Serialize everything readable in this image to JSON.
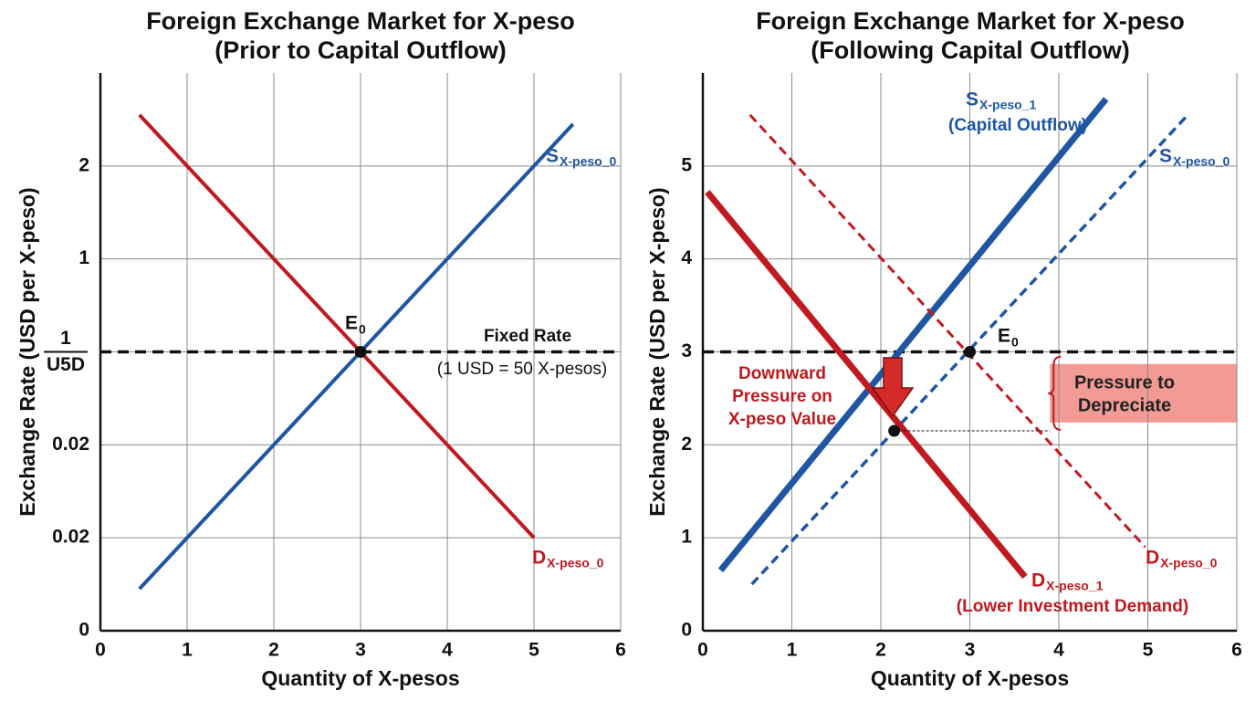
{
  "chart_data": [
    {
      "type": "line",
      "title": [
        "Foreign Exchange Market for X-peso",
        "(Prior to Capital Outflow)"
      ],
      "xlabel": "Quantity of X-pesos",
      "ylabel": "Exchange Rate (USD per X-peso)",
      "xlim": [
        0,
        6
      ],
      "xticks": [
        0,
        1,
        2,
        3,
        4,
        5,
        6
      ],
      "ylim": [
        0,
        6
      ],
      "yticks": [
        0,
        {
          "value": 1,
          "label": "0.02"
        },
        {
          "value": 2,
          "label": "0.02"
        },
        {
          "value": 3,
          "label": "1",
          "label_denominator": "U5D"
        },
        {
          "value": 4,
          "label": "1"
        },
        {
          "value": 5,
          "label": "2"
        }
      ],
      "grid": true,
      "series": [
        {
          "name": "D",
          "name_subscript": "X-peso_0",
          "color": "#c0191f",
          "style": "solid",
          "width": 4,
          "x": [
            0.45,
            5
          ],
          "values": [
            5.55,
            1
          ]
        },
        {
          "name": "S",
          "name_subscript": "X-peso_0",
          "color": "#1f56a3",
          "style": "solid",
          "width": 4,
          "x": [
            0.45,
            5.45
          ],
          "values": [
            0.45,
            5.45
          ]
        }
      ],
      "reference_line": {
        "value": 3,
        "label": "Fixed Rate",
        "sublabel": "(1 USD = 50 X-pesos)"
      },
      "points": [
        {
          "label": "E",
          "label_subscript": "0",
          "x": 3,
          "y": 3
        }
      ]
    },
    {
      "type": "line",
      "title": [
        "Foreign Exchange Market for X-peso",
        "(Following Capital Outflow)"
      ],
      "xlabel": "Quantity of X-pesos",
      "ylabel": "Exchange Rate (USD per X-peso)",
      "xlim": [
        0,
        6
      ],
      "xticks": [
        0,
        1,
        2,
        3,
        4,
        5,
        6
      ],
      "ylim": [
        0,
        6
      ],
      "yticks": [
        0,
        1,
        2,
        3,
        4,
        5
      ],
      "grid": true,
      "series": [
        {
          "name": "S",
          "name_subscript": "X-peso_1",
          "note": "(Capital Outflow)",
          "color": "#1f56a3",
          "style": "solid",
          "width": 7,
          "x": [
            0.2,
            4.53
          ],
          "values": [
            0.65,
            5.72
          ]
        },
        {
          "name": "S",
          "name_subscript": "X-peso_0",
          "color": "#1f56a3",
          "style": "dashed",
          "width": 3.5,
          "x": [
            0.55,
            5.45
          ],
          "values": [
            0.5,
            5.55
          ]
        },
        {
          "name": "D",
          "name_subscript": "X-peso_1",
          "note": "(Lower Investment Demand)",
          "color": "#c0191f",
          "style": "solid",
          "width": 7,
          "x": [
            0.05,
            3.62
          ],
          "values": [
            4.72,
            0.58
          ]
        },
        {
          "name": "D",
          "name_subscript": "X-peso_0",
          "color": "#c0191f",
          "style": "dashed",
          "width": 3,
          "x": [
            0.53,
            4.97
          ],
          "values": [
            5.55,
            0.9
          ]
        }
      ],
      "reference_line": {
        "value": 3
      },
      "points": [
        {
          "label": "E",
          "label_subscript": "0",
          "x": 3,
          "y": 3
        },
        {
          "x": 2.15,
          "y": 2.15
        }
      ],
      "annotation": [
        "Downward",
        "Pressure on",
        "X-peso Value"
      ],
      "pressure_band": {
        "x": [
          3.9,
          6
        ],
        "y": [
          2.24,
          2.87
        ],
        "label": [
          "Pressure to",
          "Depreciate"
        ]
      }
    }
  ]
}
